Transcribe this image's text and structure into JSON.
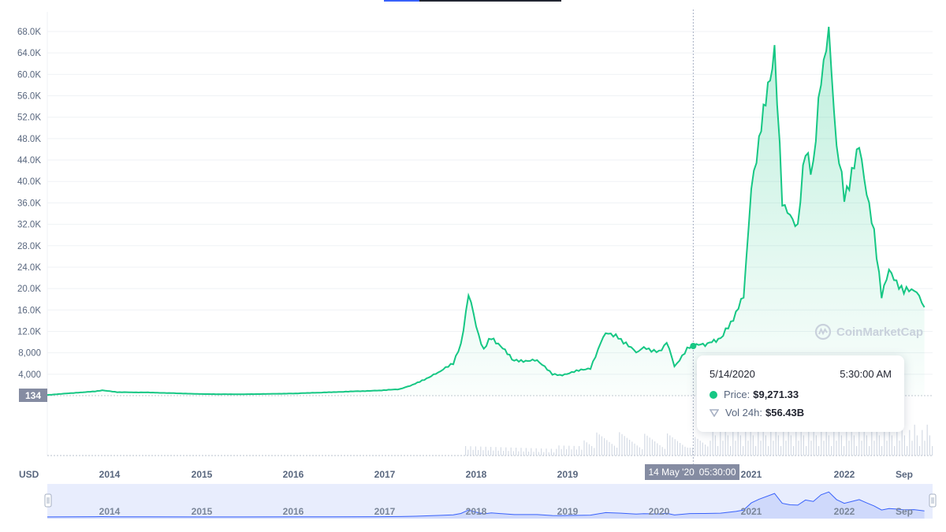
{
  "chart_data": {
    "type": "area",
    "currency": "USD",
    "y_axis": {
      "ticks": [
        "4,000",
        "8,000",
        "12.0K",
        "16.0K",
        "20.0K",
        "24.0K",
        "28.0K",
        "32.0K",
        "36.0K",
        "40.0K",
        "44.0K",
        "48.0K",
        "52.0K",
        "56.0K",
        "60.0K",
        "64.0K",
        "68.0K"
      ],
      "ylim": [
        0,
        68000
      ]
    },
    "x_axis": {
      "labels": [
        "2014",
        "2015",
        "2016",
        "2017",
        "2018",
        "2019",
        "2020",
        "2021",
        "2022",
        "Sep"
      ],
      "range": [
        "2013-04",
        "2022-11"
      ]
    },
    "series": [
      {
        "color": "#16c784",
        "x": [
          "2013-04",
          "2013-11",
          "2013-12",
          "2014-02",
          "2014-06",
          "2015-01",
          "2015-06",
          "2016-01",
          "2016-06",
          "2016-12",
          "2017-03",
          "2017-05",
          "2017-08",
          "2017-10",
          "2017-11",
          "2017-12",
          "2018-01",
          "2018-02",
          "2018-03",
          "2018-06",
          "2018-09",
          "2018-11",
          "2018-12",
          "2019-04",
          "2019-06",
          "2019-08",
          "2019-10",
          "2019-11",
          "2020-01",
          "2020-02",
          "2020-03",
          "2020-05",
          "2020-07",
          "2020-09",
          "2020-11",
          "2020-12",
          "2021-01",
          "2021-02",
          "2021-04",
          "2021-05",
          "2021-06",
          "2021-07",
          "2021-08",
          "2021-09",
          "2021-10",
          "2021-11",
          "2021-12",
          "2022-01",
          "2022-03",
          "2022-04",
          "2022-05",
          "2022-06",
          "2022-07",
          "2022-08",
          "2022-09",
          "2022-10",
          "2022-11"
        ],
        "values": [
          135,
          800,
          1000,
          650,
          600,
          300,
          250,
          400,
          650,
          950,
          1200,
          2200,
          4300,
          6000,
          9500,
          19000,
          13000,
          8500,
          11000,
          6500,
          6600,
          4000,
          3800,
          5200,
          12000,
          10500,
          8000,
          9000,
          8200,
          10000,
          5500,
          9271,
          9500,
          10500,
          15000,
          19000,
          38000,
          48000,
          63500,
          37000,
          33000,
          32000,
          46000,
          42000,
          60000,
          67500,
          47000,
          37000,
          47000,
          38000,
          30000,
          19000,
          23000,
          21500,
          19300,
          20000,
          16500
        ]
      }
    ],
    "volume_note": "24h volume bars along bottom"
  },
  "tooltip": {
    "date": "5/14/2020",
    "time": "5:30:00 AM",
    "price_label": "Price:",
    "price_value": "$9,271.33",
    "vol_label": "Vol 24h:",
    "vol_value": "$56.43B"
  },
  "cursor": {
    "date": "14 May '20",
    "time": "05:30:00"
  },
  "price_marker": "134",
  "axis_unit": "USD",
  "watermark": "CoinMarketCap",
  "navigator": {
    "labels": [
      "2014",
      "2015",
      "2016",
      "2017",
      "2018",
      "2019",
      "2020",
      "2021",
      "2022",
      "Sep"
    ]
  },
  "colors": {
    "line": "#16c784",
    "grid": "#eff2f5",
    "navigator": "#e8edfd",
    "navigator_line": "#3861fb"
  }
}
